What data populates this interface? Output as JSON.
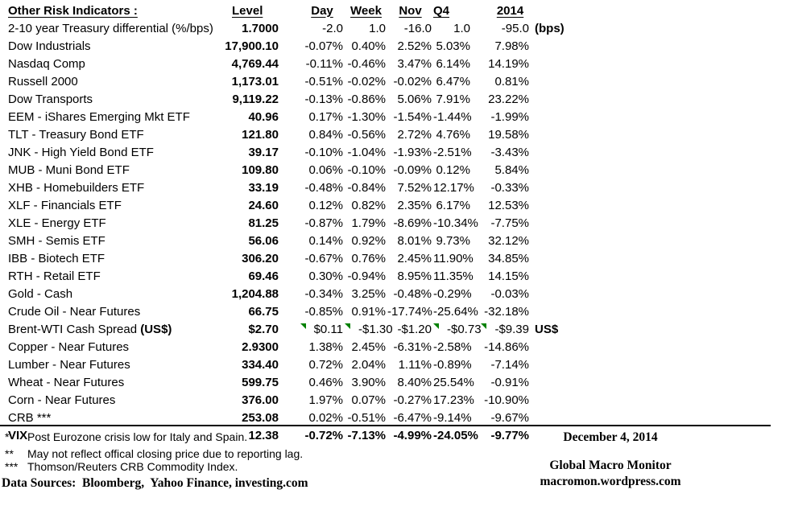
{
  "table": {
    "title": "Other Risk Indicators :",
    "columns": [
      "Level",
      "Day",
      "Week",
      "Nov",
      "Q4",
      "2014"
    ],
    "rows": [
      {
        "label": "2-10 year Treasury differential (%/bps)",
        "level": "1.7000",
        "day": "-2.0",
        "week": "1.0",
        "nov": "-16.0",
        "q4": "1.0",
        "y2014": "-95.0",
        "suffix": "(bps)"
      },
      {
        "label": "Dow Industrials",
        "level": "17,900.10",
        "day": "-0.07%",
        "week": "0.40%",
        "nov": "2.52%",
        "q4": "5.03%",
        "y2014": "7.98%"
      },
      {
        "label": "Nasdaq Comp",
        "level": "4,769.44",
        "day": "-0.11%",
        "week": "-0.46%",
        "nov": "3.47%",
        "q4": "6.14%",
        "y2014": "14.19%"
      },
      {
        "label": "Russell 2000",
        "level": "1,173.01",
        "day": "-0.51%",
        "week": "-0.02%",
        "nov": "-0.02%",
        "q4": "6.47%",
        "y2014": "0.81%"
      },
      {
        "label": "Dow Transports",
        "level": "9,119.22",
        "day": "-0.13%",
        "week": "-0.86%",
        "nov": "5.06%",
        "q4": "7.91%",
        "y2014": "23.22%"
      },
      {
        "label": "EEM - iShares Emerging Mkt ETF",
        "level": "40.96",
        "day": "0.17%",
        "week": "-1.30%",
        "nov": "-1.54%",
        "q4": "-1.44%",
        "y2014": "-1.99%"
      },
      {
        "label": "TLT - Treasury Bond ETF",
        "level": "121.80",
        "day": "0.84%",
        "week": "-0.56%",
        "nov": "2.72%",
        "q4": "4.76%",
        "y2014": "19.58%"
      },
      {
        "label": "JNK - High Yield Bond ETF",
        "level": "39.17",
        "day": "-0.10%",
        "week": "-1.04%",
        "nov": "-1.93%",
        "q4": "-2.51%",
        "y2014": "-3.43%"
      },
      {
        "label": "MUB - Muni Bond ETF",
        "level": "109.80",
        "day": "0.06%",
        "week": "-0.10%",
        "nov": "-0.09%",
        "q4": "0.12%",
        "y2014": "5.84%"
      },
      {
        "label": "XHB - Homebuilders ETF",
        "level": "33.19",
        "day": "-0.48%",
        "week": "-0.84%",
        "nov": "7.52%",
        "q4": "12.17%",
        "y2014": "-0.33%"
      },
      {
        "label": "XLF - Financials ETF",
        "level": "24.60",
        "day": "0.12%",
        "week": "0.82%",
        "nov": "2.35%",
        "q4": "6.17%",
        "y2014": "12.53%"
      },
      {
        "label": "XLE - Energy ETF",
        "level": "81.25",
        "day": "-0.87%",
        "week": "1.79%",
        "nov": "-8.69%",
        "q4": "-10.34%",
        "y2014": "-7.75%"
      },
      {
        "label": "SMH - Semis ETF",
        "level": "56.06",
        "day": "0.14%",
        "week": "0.92%",
        "nov": "8.01%",
        "q4": "9.73%",
        "y2014": "32.12%"
      },
      {
        "label": "IBB - Biotech ETF",
        "level": "306.20",
        "day": "-0.67%",
        "week": "0.76%",
        "nov": "2.45%",
        "q4": "11.90%",
        "y2014": "34.85%"
      },
      {
        "label": "RTH - Retail ETF",
        "level": "69.46",
        "day": "0.30%",
        "week": "-0.94%",
        "nov": "8.95%",
        "q4": "11.35%",
        "y2014": "14.15%"
      },
      {
        "label": "Gold - Cash",
        "level": "1,204.88",
        "day": "-0.34%",
        "week": "3.25%",
        "nov": "-0.48%",
        "q4": "-0.29%",
        "y2014": "-0.03%"
      },
      {
        "label": "Crude Oil - Near Futures",
        "level": "66.75",
        "day": "-0.85%",
        "week": "0.91%",
        "nov": "-17.74%",
        "q4": "-25.64%",
        "y2014": "-32.18%"
      },
      {
        "label": "Brent-WTI Cash Spread ",
        "label_bold": "(US$)",
        "level": "$2.70",
        "day": "$0.11",
        "week": "-$1.30",
        "nov": "-$1.20",
        "q4": "-$0.73",
        "y2014": "-$9.39",
        "suffix": "US$",
        "flags": [
          "day",
          "week",
          "q4",
          "y2014"
        ]
      },
      {
        "label": "Copper - Near Futures",
        "level": "2.9300",
        "day": "1.38%",
        "week": "2.45%",
        "nov": "-6.31%",
        "q4": "-2.58%",
        "y2014": "-14.86%"
      },
      {
        "label": "Lumber - Near Futures",
        "level": "334.40",
        "day": "0.72%",
        "week": "2.04%",
        "nov": "1.11%",
        "q4": "-0.89%",
        "y2014": "-7.14%"
      },
      {
        "label": "Wheat - Near Futures",
        "level": "599.75",
        "day": "0.46%",
        "week": "3.90%",
        "nov": "8.40%",
        "q4": "25.54%",
        "y2014": "-0.91%"
      },
      {
        "label": "Corn - Near Futures",
        "level": "376.00",
        "day": "1.97%",
        "week": "0.07%",
        "nov": "-0.27%",
        "q4": "17.23%",
        "y2014": "-10.90%"
      },
      {
        "label": "CRB ***",
        "level": "253.08",
        "day": "0.02%",
        "week": "-0.51%",
        "nov": "-6.47%",
        "q4": "-9.14%",
        "y2014": "-9.67%"
      },
      {
        "label": "VIX",
        "bold": true,
        "level": "12.38",
        "day": "-0.72%",
        "week": "-7.13%",
        "nov": "-4.99%",
        "q4": "-24.05%",
        "y2014": "-9.77%"
      }
    ]
  },
  "footnotes": [
    {
      "marker": "*",
      "text": "Post Eurozone crisis low for Italy and Spain."
    },
    {
      "marker": "**",
      "text": "May not reflect offical closing price due to reporting lag."
    },
    {
      "marker": "***",
      "text": "Thomson/Reuters CRB Commodity Index."
    }
  ],
  "data_sources": "Data Sources:  Bloomberg,  Yahoo Finance, investing.com",
  "footer_right": {
    "date": "December 4, 2014",
    "name": "Global Macro Monitor",
    "url": "macromon.wordpress.com"
  },
  "colors": {
    "flag_green": "#008000",
    "text": "#000000",
    "background": "#ffffff"
  }
}
